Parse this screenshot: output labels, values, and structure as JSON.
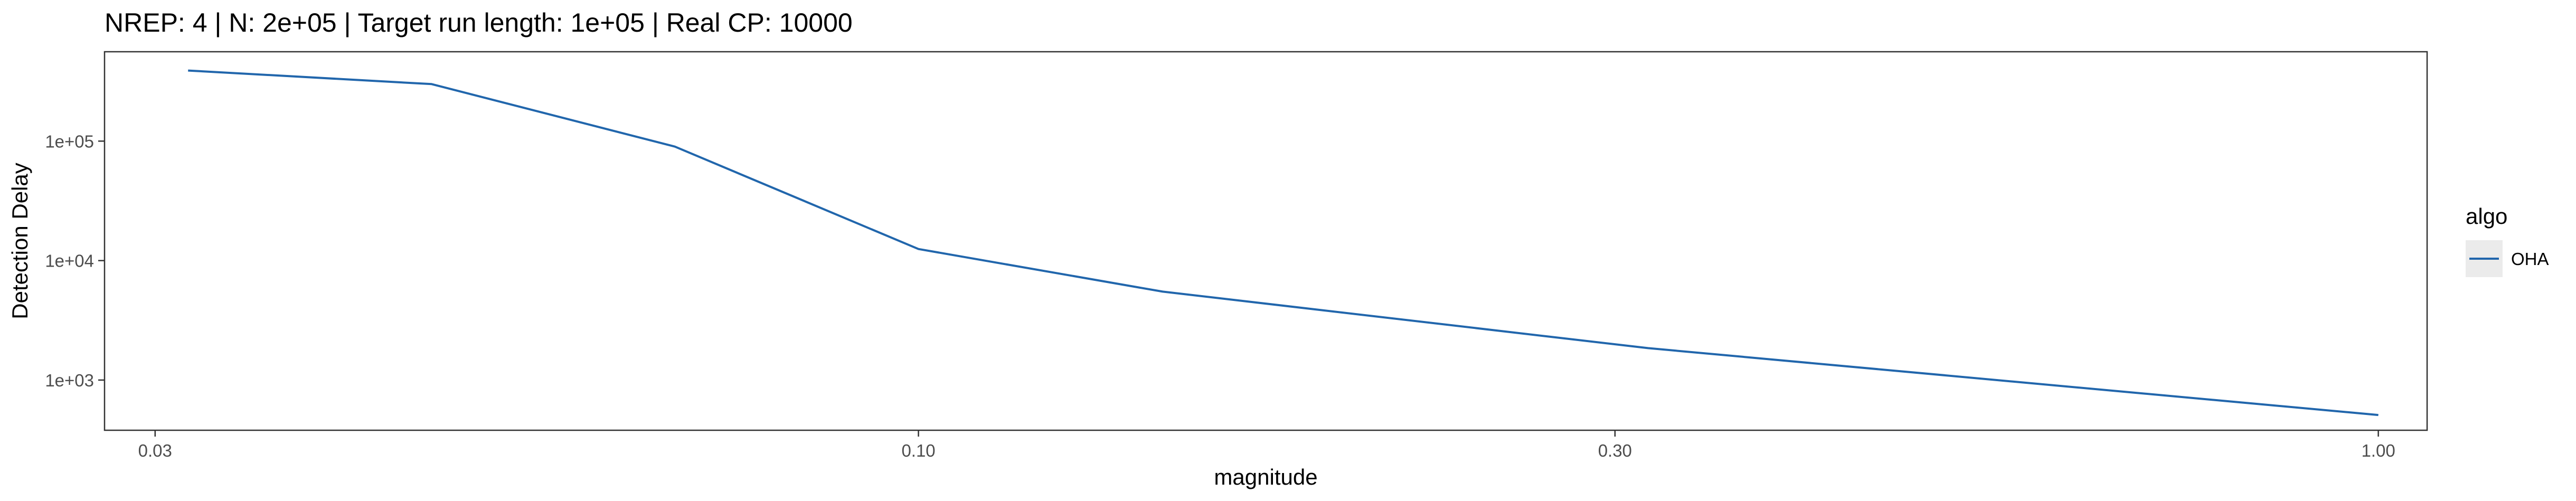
{
  "chart_data": {
    "type": "line",
    "title": "NREP: 4 | N: 2e+05 | Target run length: 1e+05 | Real CP: 10000",
    "xlabel": "magnitude",
    "ylabel": "Detection Delay",
    "x_scale": "log10",
    "y_scale": "log10",
    "xlim": [
      0.0277,
      1.08
    ],
    "ylim": [
      380,
      560000
    ],
    "x_ticks": [
      {
        "value": 0.03,
        "label": "0.03"
      },
      {
        "value": 0.1,
        "label": "0.10"
      },
      {
        "value": 0.3,
        "label": "0.30"
      },
      {
        "value": 1.0,
        "label": "1.00"
      }
    ],
    "y_ticks": [
      {
        "value": 1000,
        "label": "1e+03"
      },
      {
        "value": 10000,
        "label": "1e+04"
      },
      {
        "value": 100000,
        "label": "1e+05"
      }
    ],
    "grid": false,
    "legend": {
      "title": "algo",
      "position": "right"
    },
    "series": [
      {
        "name": "OHA",
        "color": "#2166ac",
        "x": [
          0.0316,
          0.0464,
          0.0681,
          0.1,
          0.147,
          0.316,
          1.0
        ],
        "y": [
          390000,
          300000,
          90000,
          12500,
          5500,
          1850,
          510
        ]
      }
    ]
  }
}
